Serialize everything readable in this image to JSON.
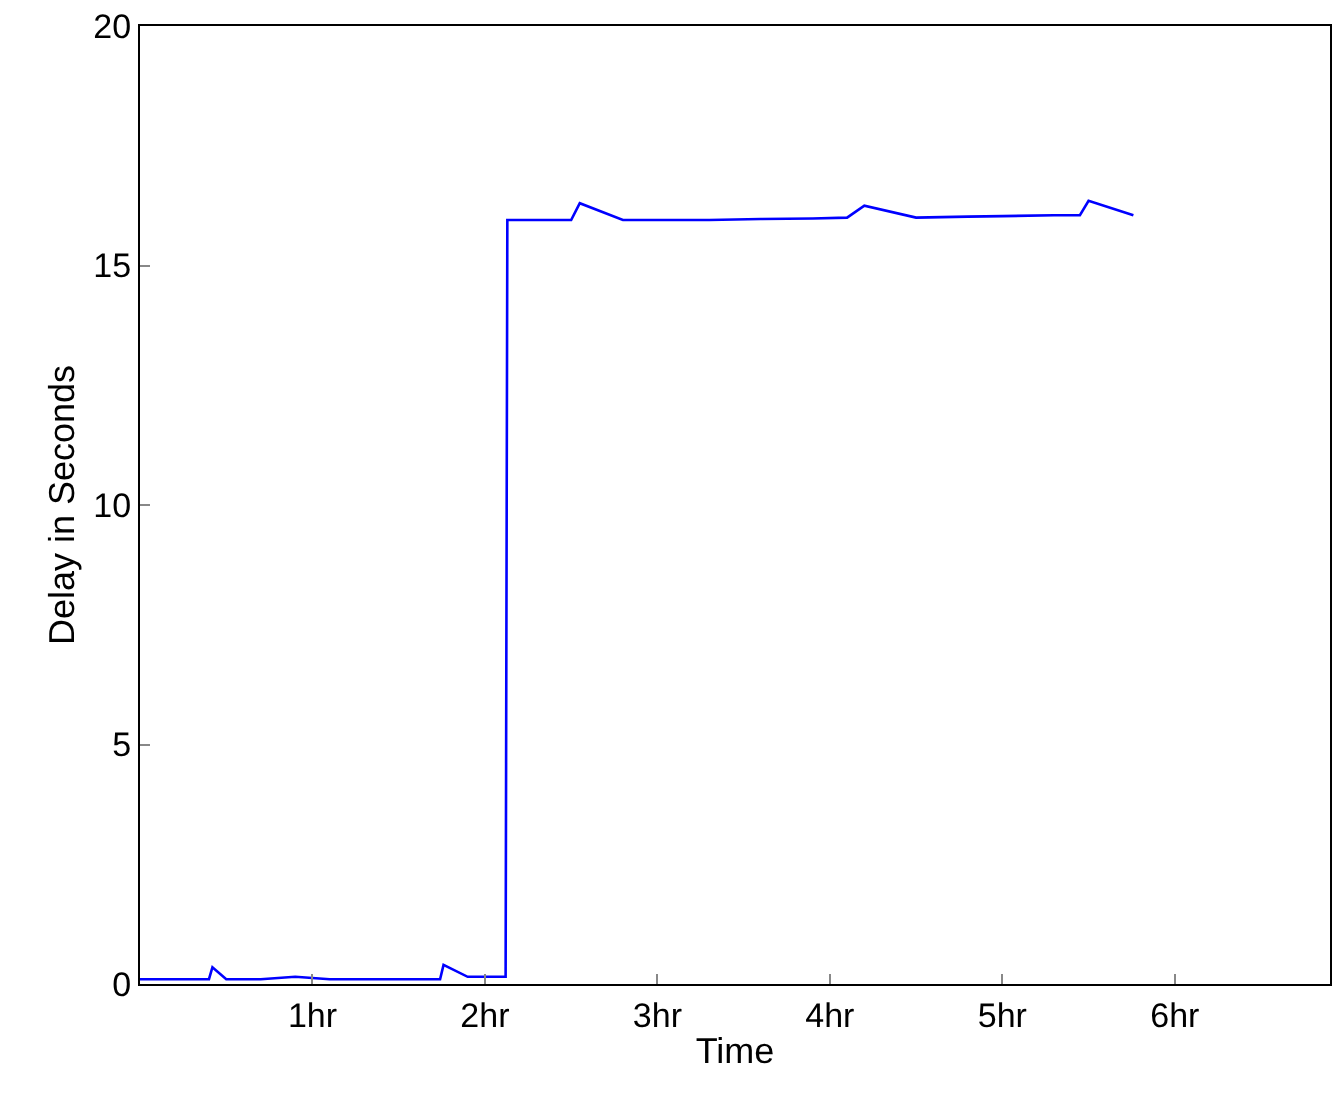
{
  "chart_data": {
    "type": "line",
    "xlabel": "Time",
    "ylabel": "Delay in Seconds",
    "x": [
      0,
      0.2,
      0.4,
      0.42,
      0.5,
      0.7,
      0.9,
      1.1,
      1.3,
      1.5,
      1.74,
      1.76,
      1.9,
      2.12,
      2.13,
      2.3,
      2.5,
      2.55,
      2.8,
      3.0,
      3.3,
      3.6,
      3.9,
      4.1,
      4.2,
      4.5,
      4.8,
      5.0,
      5.3,
      5.45,
      5.5,
      5.76
    ],
    "series": [
      {
        "color": "#0000ff",
        "values": [
          0.1,
          0.1,
          0.1,
          0.35,
          0.1,
          0.1,
          0.15,
          0.1,
          0.1,
          0.1,
          0.1,
          0.4,
          0.15,
          0.15,
          15.95,
          15.95,
          15.95,
          16.3,
          15.95,
          15.95,
          15.95,
          15.97,
          15.98,
          16.0,
          16.25,
          16.0,
          16.02,
          16.03,
          16.05,
          16.05,
          16.35,
          16.05
        ]
      }
    ],
    "xlim": [
      0,
      6.9
    ],
    "xticks": [
      {
        "value": 1,
        "label": "1hr"
      },
      {
        "value": 2,
        "label": "2hr"
      },
      {
        "value": 3,
        "label": "3hr"
      },
      {
        "value": 4,
        "label": "4hr"
      },
      {
        "value": 5,
        "label": "5hr"
      },
      {
        "value": 6,
        "label": "6hr"
      }
    ],
    "ylim": [
      0,
      20
    ],
    "yticks": [
      0,
      5,
      10,
      15,
      20
    ],
    "legend": false,
    "marker": "none",
    "line_style": "solid"
  }
}
